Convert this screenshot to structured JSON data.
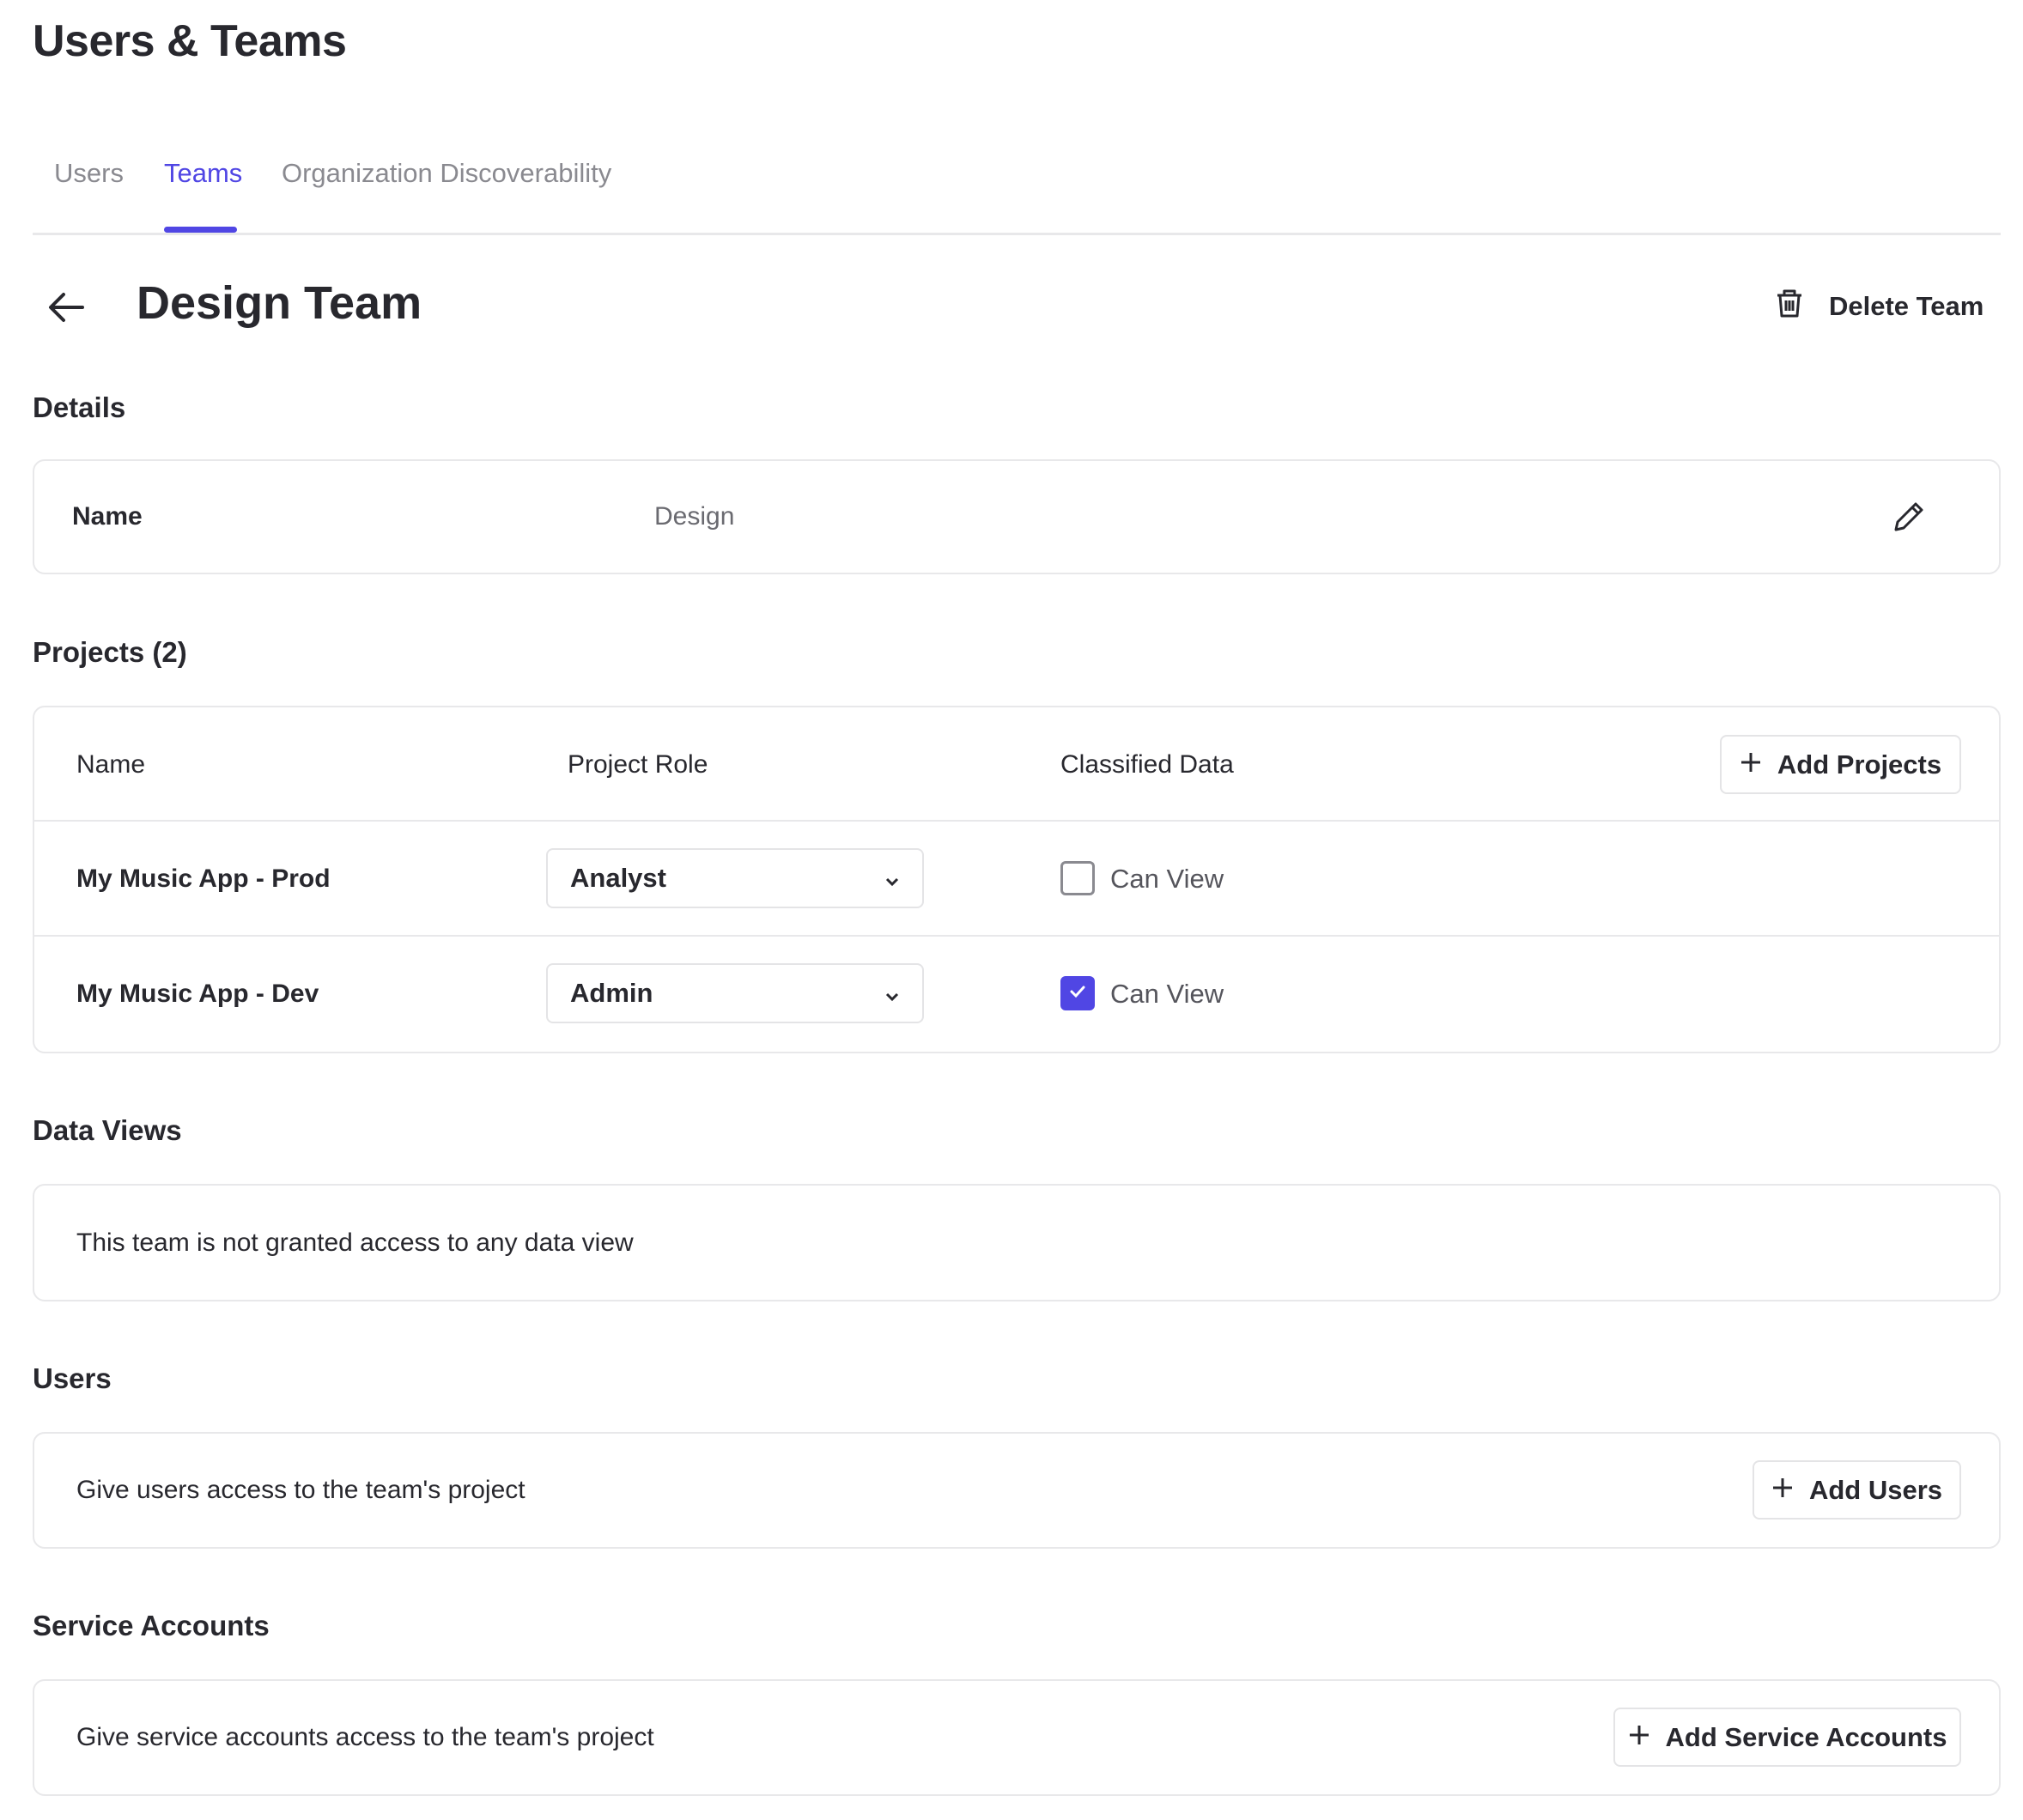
{
  "header": {
    "title": "Users & Teams"
  },
  "tabs": [
    {
      "label": "Users"
    },
    {
      "label": "Teams",
      "active": true
    },
    {
      "label": "Organization Discoverability"
    }
  ],
  "team": {
    "title": "Design Team",
    "delete_label": "Delete Team"
  },
  "details": {
    "heading": "Details",
    "name_label": "Name",
    "name_value": "Design"
  },
  "projects": {
    "heading": "Projects (2)",
    "columns": [
      "Name",
      "Project Role",
      "Classified Data"
    ],
    "add_label": "Add Projects",
    "rows": [
      {
        "name": "My Music App - Prod",
        "role": "Analyst",
        "classified_label": "Can View",
        "classified_checked": false
      },
      {
        "name": "My Music App - Dev",
        "role": "Admin",
        "classified_label": "Can View",
        "classified_checked": true
      }
    ]
  },
  "data_views": {
    "heading": "Data Views",
    "empty_text": "This team is not granted access to any data view"
  },
  "users": {
    "heading": "Users",
    "text": "Give users access to the team's project",
    "add_label": "Add Users"
  },
  "service_accounts": {
    "heading": "Service Accounts",
    "text": "Give service accounts access to the team's project",
    "add_label": "Add Service Accounts"
  },
  "colors": {
    "accent": "#5046e4",
    "text": "#28282e",
    "muted": "#8a8a90",
    "border": "#e8e8ea"
  }
}
